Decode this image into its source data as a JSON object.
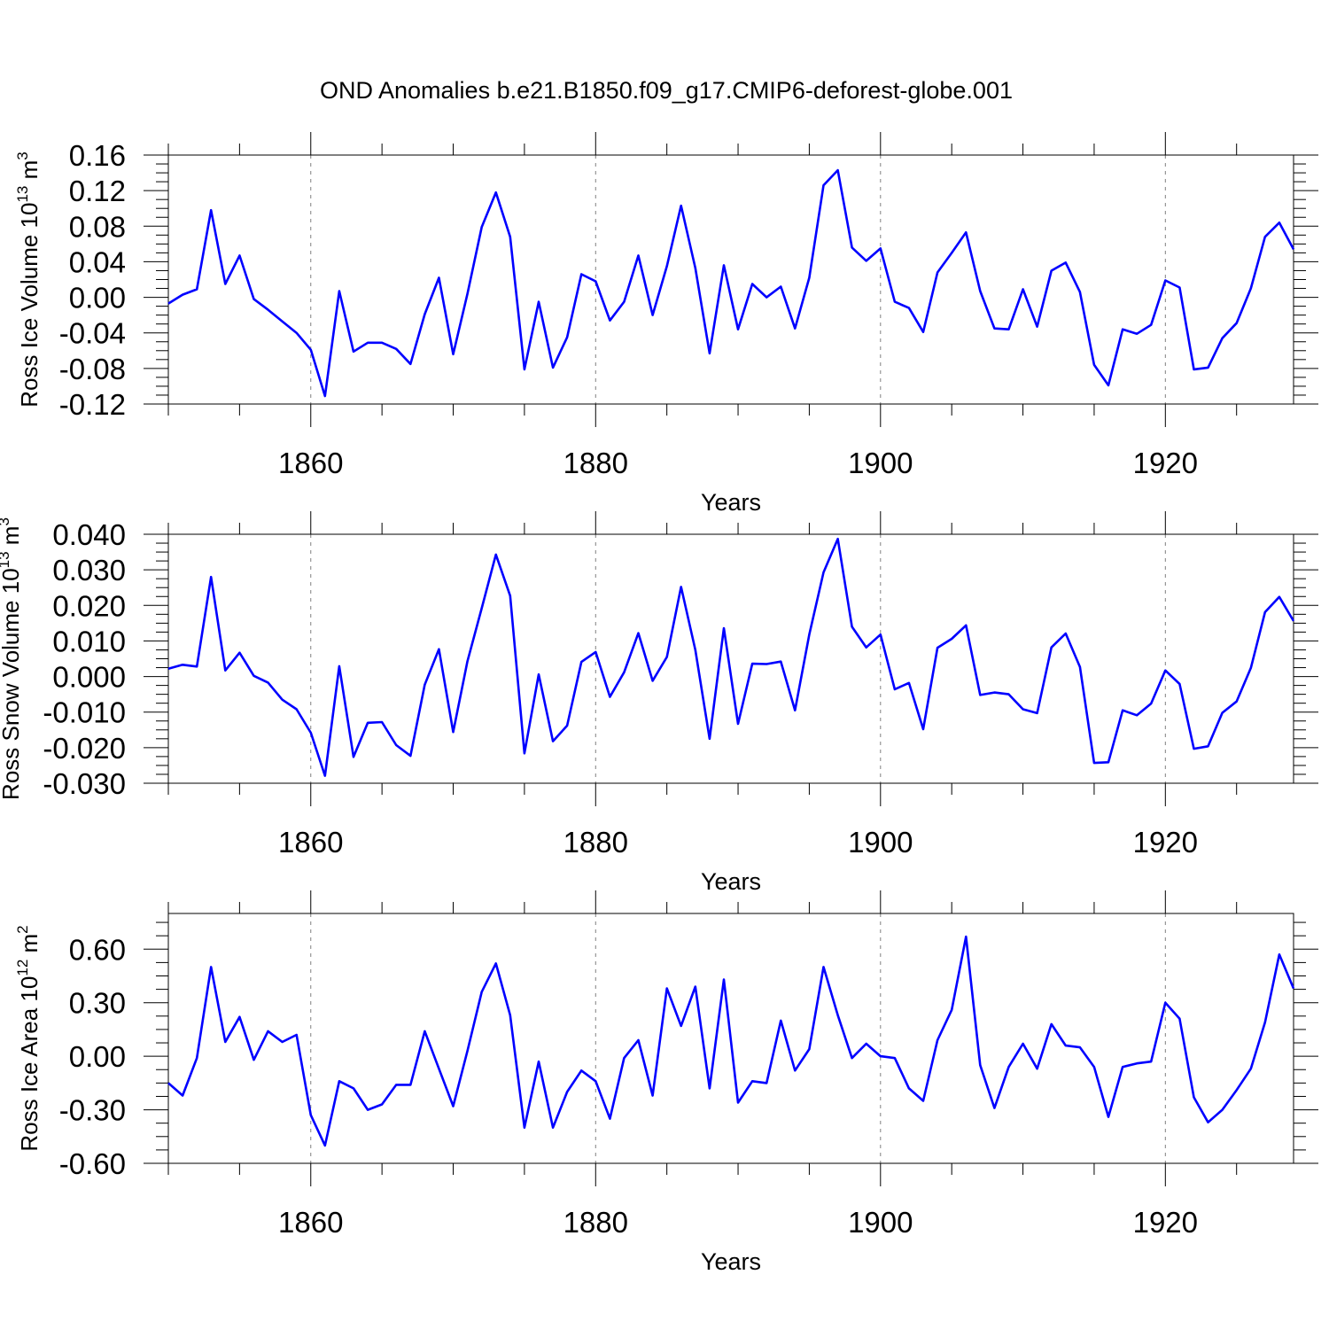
{
  "title": "OND Anomalies b.e21.B1850.f09_g17.CMIP6-deforest-globe.001",
  "colors": {
    "line": "#0000ff",
    "frame": "#000000",
    "grid": "#808080"
  },
  "chart_data": [
    {
      "type": "line",
      "ylabel": {
        "main": "Ross Ice Volume 10",
        "sup": "13",
        "unit": " m",
        "unit_sup": "3"
      },
      "xlabel": "Years",
      "xlim": [
        1850,
        1929
      ],
      "ylim": [
        -0.12,
        0.16
      ],
      "xticks": [
        1860,
        1880,
        1900,
        1920
      ],
      "yticks": [
        -0.12,
        -0.08,
        -0.04,
        0.0,
        0.04,
        0.08,
        0.12,
        0.16
      ],
      "ytick_labels": [
        "-0.12",
        "-0.08",
        "-0.04",
        "0.00",
        "0.04",
        "0.08",
        "0.12",
        "0.16"
      ],
      "grid": "dashed vertical at major x ticks",
      "series": [
        {
          "x": [
            1850,
            1851,
            1852,
            1853,
            1854,
            1855,
            1856,
            1857,
            1858,
            1859,
            1860,
            1861,
            1862,
            1863,
            1864,
            1865,
            1866,
            1867,
            1868,
            1869,
            1870,
            1871,
            1872,
            1873,
            1874,
            1875,
            1876,
            1877,
            1878,
            1879,
            1880,
            1881,
            1882,
            1883,
            1884,
            1885,
            1886,
            1887,
            1888,
            1889,
            1890,
            1891,
            1892,
            1893,
            1894,
            1895,
            1896,
            1897,
            1898,
            1899,
            1900,
            1901,
            1902,
            1903,
            1904,
            1905,
            1906,
            1907,
            1908,
            1909,
            1910,
            1911,
            1912,
            1913,
            1914,
            1915,
            1916,
            1917,
            1918,
            1919,
            1920,
            1921,
            1922,
            1923,
            1924,
            1925,
            1926,
            1927,
            1928,
            1929
          ],
          "y": [
            -0.007,
            0.003,
            0.009,
            0.098,
            0.015,
            0.047,
            -0.002,
            -0.014,
            -0.027,
            -0.04,
            -0.059,
            -0.111,
            0.007,
            -0.061,
            -0.051,
            -0.051,
            -0.058,
            -0.075,
            -0.019,
            0.022,
            -0.064,
            0.004,
            0.079,
            0.118,
            0.068,
            -0.081,
            -0.005,
            -0.079,
            -0.045,
            0.026,
            0.018,
            -0.026,
            -0.005,
            0.047,
            -0.02,
            0.035,
            0.103,
            0.033,
            -0.063,
            0.036,
            -0.036,
            0.015,
            0.0,
            0.012,
            -0.035,
            0.022,
            0.126,
            0.143,
            0.056,
            0.041,
            0.055,
            -0.005,
            -0.012,
            -0.039,
            0.028,
            0.05,
            0.073,
            0.007,
            -0.035,
            -0.036,
            0.009,
            -0.033,
            0.03,
            0.039,
            0.006,
            -0.076,
            -0.099,
            -0.036,
            -0.041,
            -0.031,
            0.019,
            0.011,
            -0.081,
            -0.079,
            -0.046,
            -0.029,
            0.01,
            0.068,
            0.084,
            0.054
          ]
        }
      ]
    },
    {
      "type": "line",
      "ylabel": {
        "main": "Ross Snow Volume 10",
        "sup": "13",
        "unit": " m",
        "unit_sup": "3"
      },
      "xlabel": "Years",
      "xlim": [
        1850,
        1929
      ],
      "ylim": [
        -0.03,
        0.04
      ],
      "xticks": [
        1860,
        1880,
        1900,
        1920
      ],
      "yticks": [
        -0.03,
        -0.02,
        -0.01,
        0.0,
        0.01,
        0.02,
        0.03,
        0.04
      ],
      "ytick_labels": [
        "-0.030",
        "-0.020",
        "-0.010",
        "0.000",
        "0.010",
        "0.020",
        "0.030",
        "0.040"
      ],
      "grid": "dashed vertical at major x ticks",
      "series": [
        {
          "x": [
            1850,
            1851,
            1852,
            1853,
            1854,
            1855,
            1856,
            1857,
            1858,
            1859,
            1860,
            1861,
            1862,
            1863,
            1864,
            1865,
            1866,
            1867,
            1868,
            1869,
            1870,
            1871,
            1872,
            1873,
            1874,
            1875,
            1876,
            1877,
            1878,
            1879,
            1880,
            1881,
            1882,
            1883,
            1884,
            1885,
            1886,
            1887,
            1888,
            1889,
            1890,
            1891,
            1892,
            1893,
            1894,
            1895,
            1896,
            1897,
            1898,
            1899,
            1900,
            1901,
            1902,
            1903,
            1904,
            1905,
            1906,
            1907,
            1908,
            1909,
            1910,
            1911,
            1912,
            1913,
            1914,
            1915,
            1916,
            1917,
            1918,
            1919,
            1920,
            1921,
            1922,
            1923,
            1924,
            1925,
            1926,
            1927,
            1928,
            1929
          ],
          "y": [
            0.0022,
            0.0033,
            0.0028,
            0.028,
            0.0017,
            0.0067,
            0.0002,
            -0.0017,
            -0.0065,
            -0.0092,
            -0.0158,
            -0.0279,
            0.0029,
            -0.0226,
            -0.013,
            -0.0128,
            -0.0193,
            -0.0223,
            -0.0023,
            0.0077,
            -0.0156,
            0.0043,
            0.0192,
            0.0343,
            0.0227,
            -0.0216,
            0.0006,
            -0.0182,
            -0.0138,
            0.0041,
            0.0069,
            -0.0057,
            0.0012,
            0.0122,
            -0.0012,
            0.0055,
            0.0252,
            0.0075,
            -0.0175,
            0.0136,
            -0.0133,
            0.0036,
            0.0035,
            0.0042,
            -0.0095,
            0.0118,
            0.0293,
            0.0387,
            0.014,
            0.0082,
            0.0118,
            -0.0036,
            -0.0018,
            -0.0148,
            0.0081,
            0.0106,
            0.0144,
            -0.0052,
            -0.0045,
            -0.005,
            -0.0092,
            -0.0103,
            0.0082,
            0.0121,
            0.0027,
            -0.0243,
            -0.0241,
            -0.0095,
            -0.0109,
            -0.0076,
            0.0017,
            -0.0021,
            -0.0203,
            -0.0196,
            -0.0102,
            -0.007,
            0.0024,
            0.0181,
            0.0224,
            0.0156
          ]
        }
      ]
    },
    {
      "type": "line",
      "ylabel": {
        "main": "Ross Ice Area 10",
        "sup": "12",
        "unit": " m",
        "unit_sup": "2"
      },
      "xlabel": "Years",
      "xlim": [
        1850,
        1929
      ],
      "ylim": [
        -0.6,
        0.8
      ],
      "xticks": [
        1860,
        1880,
        1900,
        1920
      ],
      "yticks": [
        -0.6,
        -0.3,
        0.0,
        0.3,
        0.6
      ],
      "ytick_labels": [
        "-0.60",
        "-0.30",
        "0.00",
        "0.30",
        "0.60"
      ],
      "grid": "dashed vertical at major x ticks",
      "series": [
        {
          "x": [
            1850,
            1851,
            1852,
            1853,
            1854,
            1855,
            1856,
            1857,
            1858,
            1859,
            1860,
            1861,
            1862,
            1863,
            1864,
            1865,
            1866,
            1867,
            1868,
            1869,
            1870,
            1871,
            1872,
            1873,
            1874,
            1875,
            1876,
            1877,
            1878,
            1879,
            1880,
            1881,
            1882,
            1883,
            1884,
            1885,
            1886,
            1887,
            1888,
            1889,
            1890,
            1891,
            1892,
            1893,
            1894,
            1895,
            1896,
            1897,
            1898,
            1899,
            1900,
            1901,
            1902,
            1903,
            1904,
            1905,
            1906,
            1907,
            1908,
            1909,
            1910,
            1911,
            1912,
            1913,
            1914,
            1915,
            1916,
            1917,
            1918,
            1919,
            1920,
            1921,
            1922,
            1923,
            1924,
            1925,
            1926,
            1927,
            1928,
            1929
          ],
          "y": [
            -0.15,
            -0.22,
            -0.01,
            0.5,
            0.08,
            0.22,
            -0.02,
            0.14,
            0.08,
            0.12,
            -0.33,
            -0.5,
            -0.14,
            -0.18,
            -0.3,
            -0.27,
            -0.16,
            -0.16,
            0.14,
            -0.07,
            -0.28,
            0.03,
            0.36,
            0.52,
            0.23,
            -0.4,
            -0.03,
            -0.4,
            -0.2,
            -0.08,
            -0.14,
            -0.35,
            -0.01,
            0.09,
            -0.22,
            0.38,
            0.17,
            0.39,
            -0.18,
            0.43,
            -0.26,
            -0.14,
            -0.15,
            0.2,
            -0.08,
            0.04,
            0.5,
            0.23,
            -0.01,
            0.07,
            0.0,
            -0.01,
            -0.18,
            -0.25,
            0.09,
            0.26,
            0.67,
            -0.05,
            -0.29,
            -0.06,
            0.07,
            -0.07,
            0.18,
            0.06,
            0.05,
            -0.06,
            -0.34,
            -0.06,
            -0.04,
            -0.03,
            0.3,
            0.21,
            -0.23,
            -0.37,
            -0.3,
            -0.19,
            -0.07,
            0.19,
            0.57,
            0.38
          ]
        }
      ]
    }
  ]
}
